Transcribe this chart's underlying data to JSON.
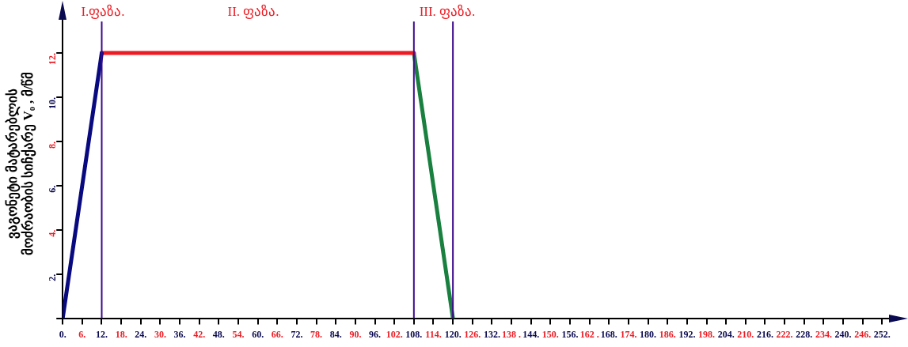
{
  "chart_data": {
    "type": "line",
    "ylabel": "ვაგონეტი მატარებლის\nმოძრაობის სიჩქარე V₀ , მ/წმ",
    "series": [
      {
        "color": "#0a0a80",
        "x": [
          0,
          12
        ],
        "values": [
          0,
          12
        ]
      },
      {
        "color": "#ed1c24",
        "x": [
          12,
          108
        ],
        "values": [
          12,
          12
        ]
      },
      {
        "color": "#1a8040",
        "x": [
          108,
          120
        ],
        "values": [
          12,
          0
        ]
      }
    ],
    "xlim": [
      0,
      258
    ],
    "ylim": [
      0,
      14
    ],
    "xticks": [
      {
        "value": 0,
        "label": "0."
      },
      {
        "value": 6,
        "label": "6."
      },
      {
        "value": 12,
        "label": "12."
      },
      {
        "value": 18,
        "label": "18."
      },
      {
        "value": 24,
        "label": "24."
      },
      {
        "value": 30,
        "label": "30."
      },
      {
        "value": 36,
        "label": "36."
      },
      {
        "value": 42,
        "label": "42."
      },
      {
        "value": 48,
        "label": "48."
      },
      {
        "value": 54,
        "label": "54."
      },
      {
        "value": 60,
        "label": "60."
      },
      {
        "value": 66,
        "label": "66."
      },
      {
        "value": 72,
        "label": "72."
      },
      {
        "value": 78,
        "label": "78."
      },
      {
        "value": 84,
        "label": "84."
      },
      {
        "value": 90,
        "label": "90."
      },
      {
        "value": 96,
        "label": "96."
      },
      {
        "value": 102,
        "label": "102."
      },
      {
        "value": 108,
        "label": "108."
      },
      {
        "value": 114,
        "label": "114."
      },
      {
        "value": 120,
        "label": "120."
      },
      {
        "value": 126,
        "label": "126."
      },
      {
        "value": 132,
        "label": "132."
      },
      {
        "value": 138,
        "label": "138 ."
      },
      {
        "value": 144,
        "label": "144."
      },
      {
        "value": 150,
        "label": "150."
      },
      {
        "value": 156,
        "label": "156."
      },
      {
        "value": 162,
        "label": "162 ."
      },
      {
        "value": 168,
        "label": "168."
      },
      {
        "value": 174,
        "label": "174."
      },
      {
        "value": 180,
        "label": "180."
      },
      {
        "value": 186,
        "label": "186."
      },
      {
        "value": 192,
        "label": "192."
      },
      {
        "value": 198,
        "label": "198."
      },
      {
        "value": 204,
        "label": "204."
      },
      {
        "value": 210,
        "label": "210."
      },
      {
        "value": 216,
        "label": "216."
      },
      {
        "value": 222,
        "label": "222."
      },
      {
        "value": 228,
        "label": "228."
      },
      {
        "value": 234,
        "label": "234."
      },
      {
        "value": 240,
        "label": "240."
      },
      {
        "value": 246,
        "label": "246."
      },
      {
        "value": 252,
        "label": "252."
      }
    ],
    "yticks": [
      {
        "value": 0,
        "label": null
      },
      {
        "value": 2,
        "label": "2."
      },
      {
        "value": 4,
        "label": "4."
      },
      {
        "value": 6,
        "label": "6."
      },
      {
        "value": 8,
        "label": "8."
      },
      {
        "value": 10,
        "label": "10."
      },
      {
        "value": 12,
        "label": "12."
      }
    ],
    "ref_lines": [
      {
        "axis": "x",
        "value": 12,
        "color": "#3c0a8c"
      },
      {
        "axis": "x",
        "value": 108,
        "color": "#3c0a8c"
      },
      {
        "axis": "x",
        "value": 120,
        "color": "#3c0a8c"
      }
    ],
    "annotations": [
      "I.ფაზა.",
      "II. ფაზა.",
      "III. ფაზა."
    ],
    "grid": false,
    "legend": false,
    "marker": "none",
    "line_style": "solid"
  }
}
